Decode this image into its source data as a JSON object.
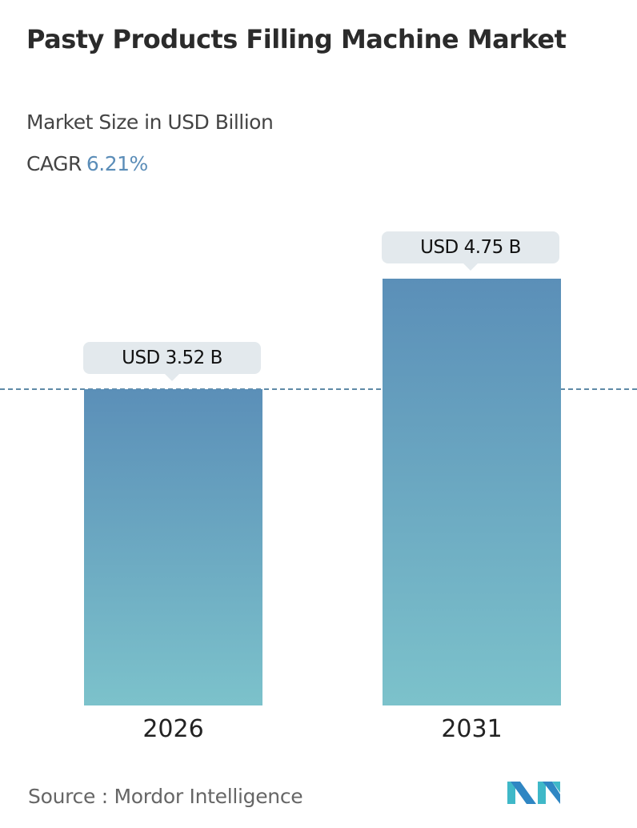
{
  "title": "Pasty Products Filling Machine Market",
  "subtitle": "Market Size in USD Billion",
  "cagr": {
    "label": "CAGR",
    "value": "6.21%"
  },
  "chart_data": {
    "type": "bar",
    "categories": [
      "2026",
      "2031"
    ],
    "values": [
      3.52,
      4.75
    ],
    "data_labels": [
      "USD 3.52 B",
      "USD 4.75 B"
    ],
    "reference_line": 3.52,
    "grid": false,
    "colors": {
      "bar_top": "#5b8fb8",
      "bar_bottom": "#7cc2cb",
      "cagr": "#5b8db8"
    }
  },
  "source": {
    "label": "Source :",
    "value": "Mordor Intelligence"
  },
  "logo": "mordor-intelligence-logo"
}
